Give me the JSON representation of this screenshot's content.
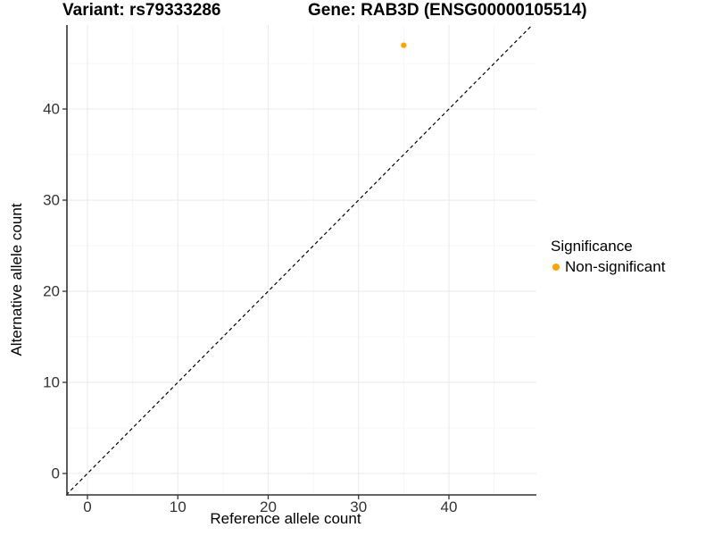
{
  "figure": {
    "title_variant": "Variant: rs79333286",
    "title_gene": "Gene: RAB3D (ENSG00000105514)"
  },
  "chart_data": {
    "type": "scatter",
    "title": "Variant: rs79333286 | Gene: RAB3D (ENSG00000105514)",
    "xlabel": "Reference allele count",
    "ylabel": "Alternative allele count",
    "xlim": [
      -2.27,
      49.68
    ],
    "ylim": [
      -2.35,
      49.22
    ],
    "x_major_ticks": [
      0,
      10,
      20,
      30,
      40
    ],
    "x_minor_ticks": [
      5,
      15,
      25,
      35,
      45
    ],
    "y_major_ticks": [
      0,
      10,
      20,
      30,
      40
    ],
    "y_minor_ticks": [
      5,
      15,
      25,
      35,
      45
    ],
    "grid": "major+minor",
    "legend_position": "right",
    "legend_title": "Significance",
    "series": [
      {
        "name": "Non-significant",
        "color": "#FFA500",
        "points": [
          {
            "x": 35,
            "y": 47
          }
        ]
      }
    ],
    "reference_line": {
      "kind": "identity",
      "style": "dashed",
      "color": "#000000"
    },
    "style_colors": {
      "grid_major": "#EBEBEB",
      "grid_minor": "#F5F5F5",
      "axis_line": "#333333",
      "tick_label": "#333333"
    }
  }
}
